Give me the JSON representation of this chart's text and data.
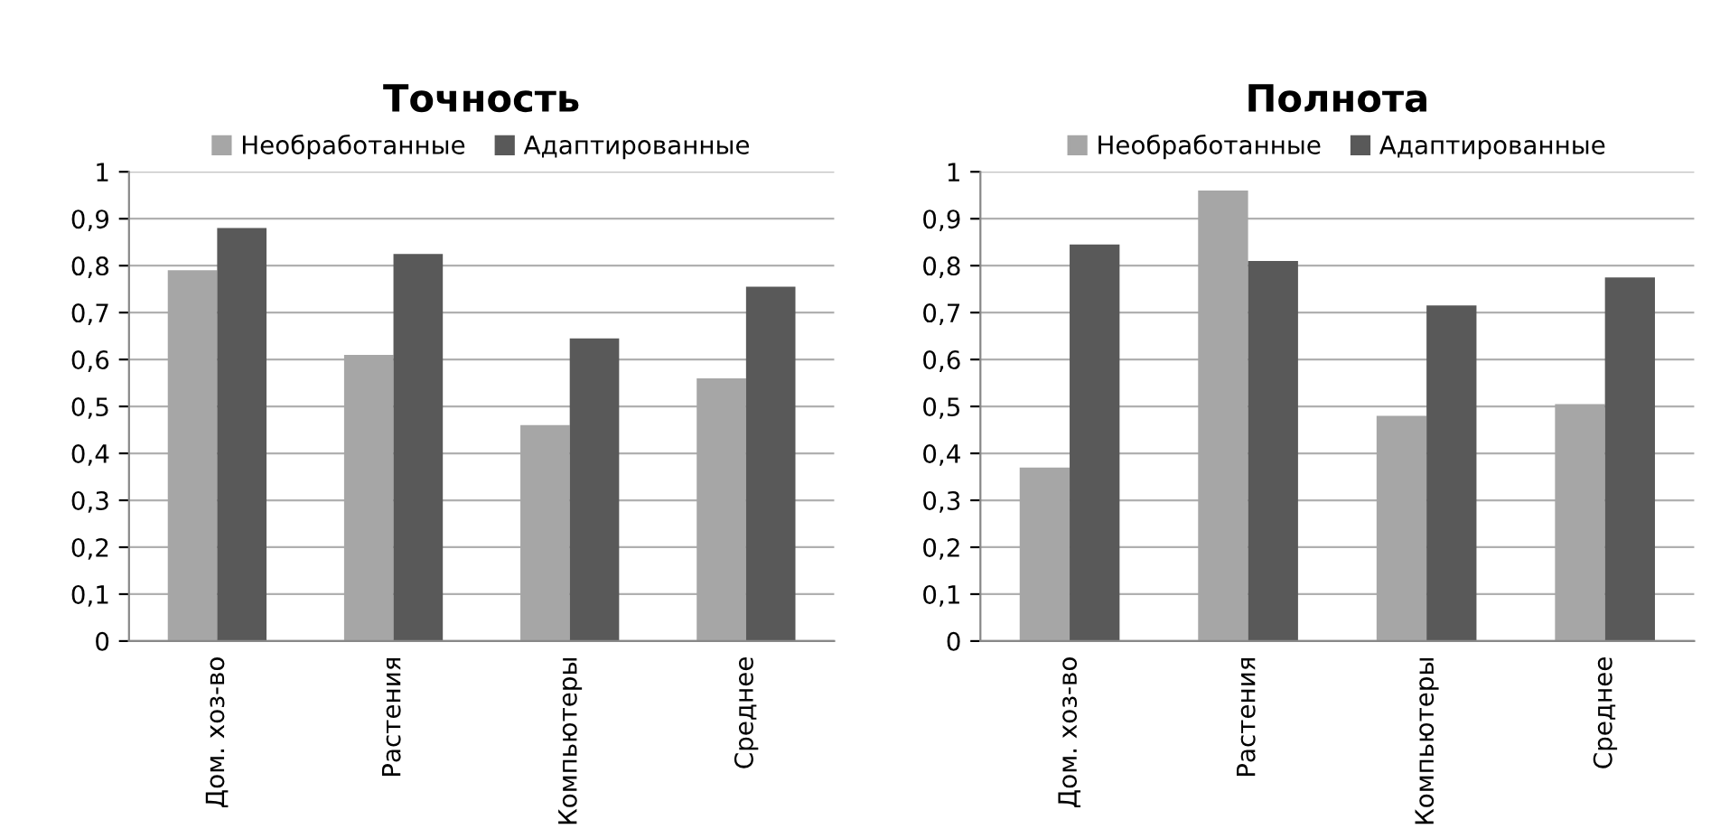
{
  "chart_data": [
    {
      "type": "bar",
      "title": "Точность",
      "categories": [
        "Дом. хоз-во",
        "Растения",
        "Компьютеры",
        "Среднее"
      ],
      "series": [
        {
          "name": "Необработанные",
          "color": "#a6a6a6",
          "values": [
            0.79,
            0.61,
            0.46,
            0.56
          ]
        },
        {
          "name": "Адаптированные",
          "color": "#595959",
          "values": [
            0.88,
            0.825,
            0.645,
            0.755
          ]
        }
      ],
      "ylim": [
        0,
        1
      ],
      "yticks": [
        0,
        {
          "value": 0.1,
          "label": "0,1"
        },
        {
          "value": 0.2,
          "label": "0,2"
        },
        {
          "value": 0.3,
          "label": "0,3"
        },
        {
          "value": 0.4,
          "label": "0,4"
        },
        {
          "value": 0.5,
          "label": "0,5"
        },
        {
          "value": 0.6,
          "label": "0,6"
        },
        {
          "value": 0.7,
          "label": "0,7"
        },
        {
          "value": 0.8,
          "label": "0,8"
        },
        {
          "value": 0.9,
          "label": "0,9"
        },
        1
      ],
      "grid": "y",
      "legend": "top"
    },
    {
      "type": "bar",
      "title": "Полнота",
      "categories": [
        "Дом. хоз-во",
        "Растения",
        "Компьютеры",
        "Среднее"
      ],
      "series": [
        {
          "name": "Необработанные",
          "color": "#a6a6a6",
          "values": [
            0.37,
            0.96,
            0.48,
            0.505
          ]
        },
        {
          "name": "Адаптированные",
          "color": "#595959",
          "values": [
            0.845,
            0.81,
            0.715,
            0.775
          ]
        }
      ],
      "ylim": [
        0,
        1
      ],
      "yticks": [
        0,
        {
          "value": 0.1,
          "label": "0,1"
        },
        {
          "value": 0.2,
          "label": "0,2"
        },
        {
          "value": 0.3,
          "label": "0,3"
        },
        {
          "value": 0.4,
          "label": "0,4"
        },
        {
          "value": 0.5,
          "label": "0,5"
        },
        {
          "value": 0.6,
          "label": "0,6"
        },
        {
          "value": 0.7,
          "label": "0,7"
        },
        {
          "value": 0.8,
          "label": "0,8"
        },
        {
          "value": 0.9,
          "label": "0,9"
        },
        1
      ],
      "grid": "y",
      "legend": "top"
    }
  ]
}
